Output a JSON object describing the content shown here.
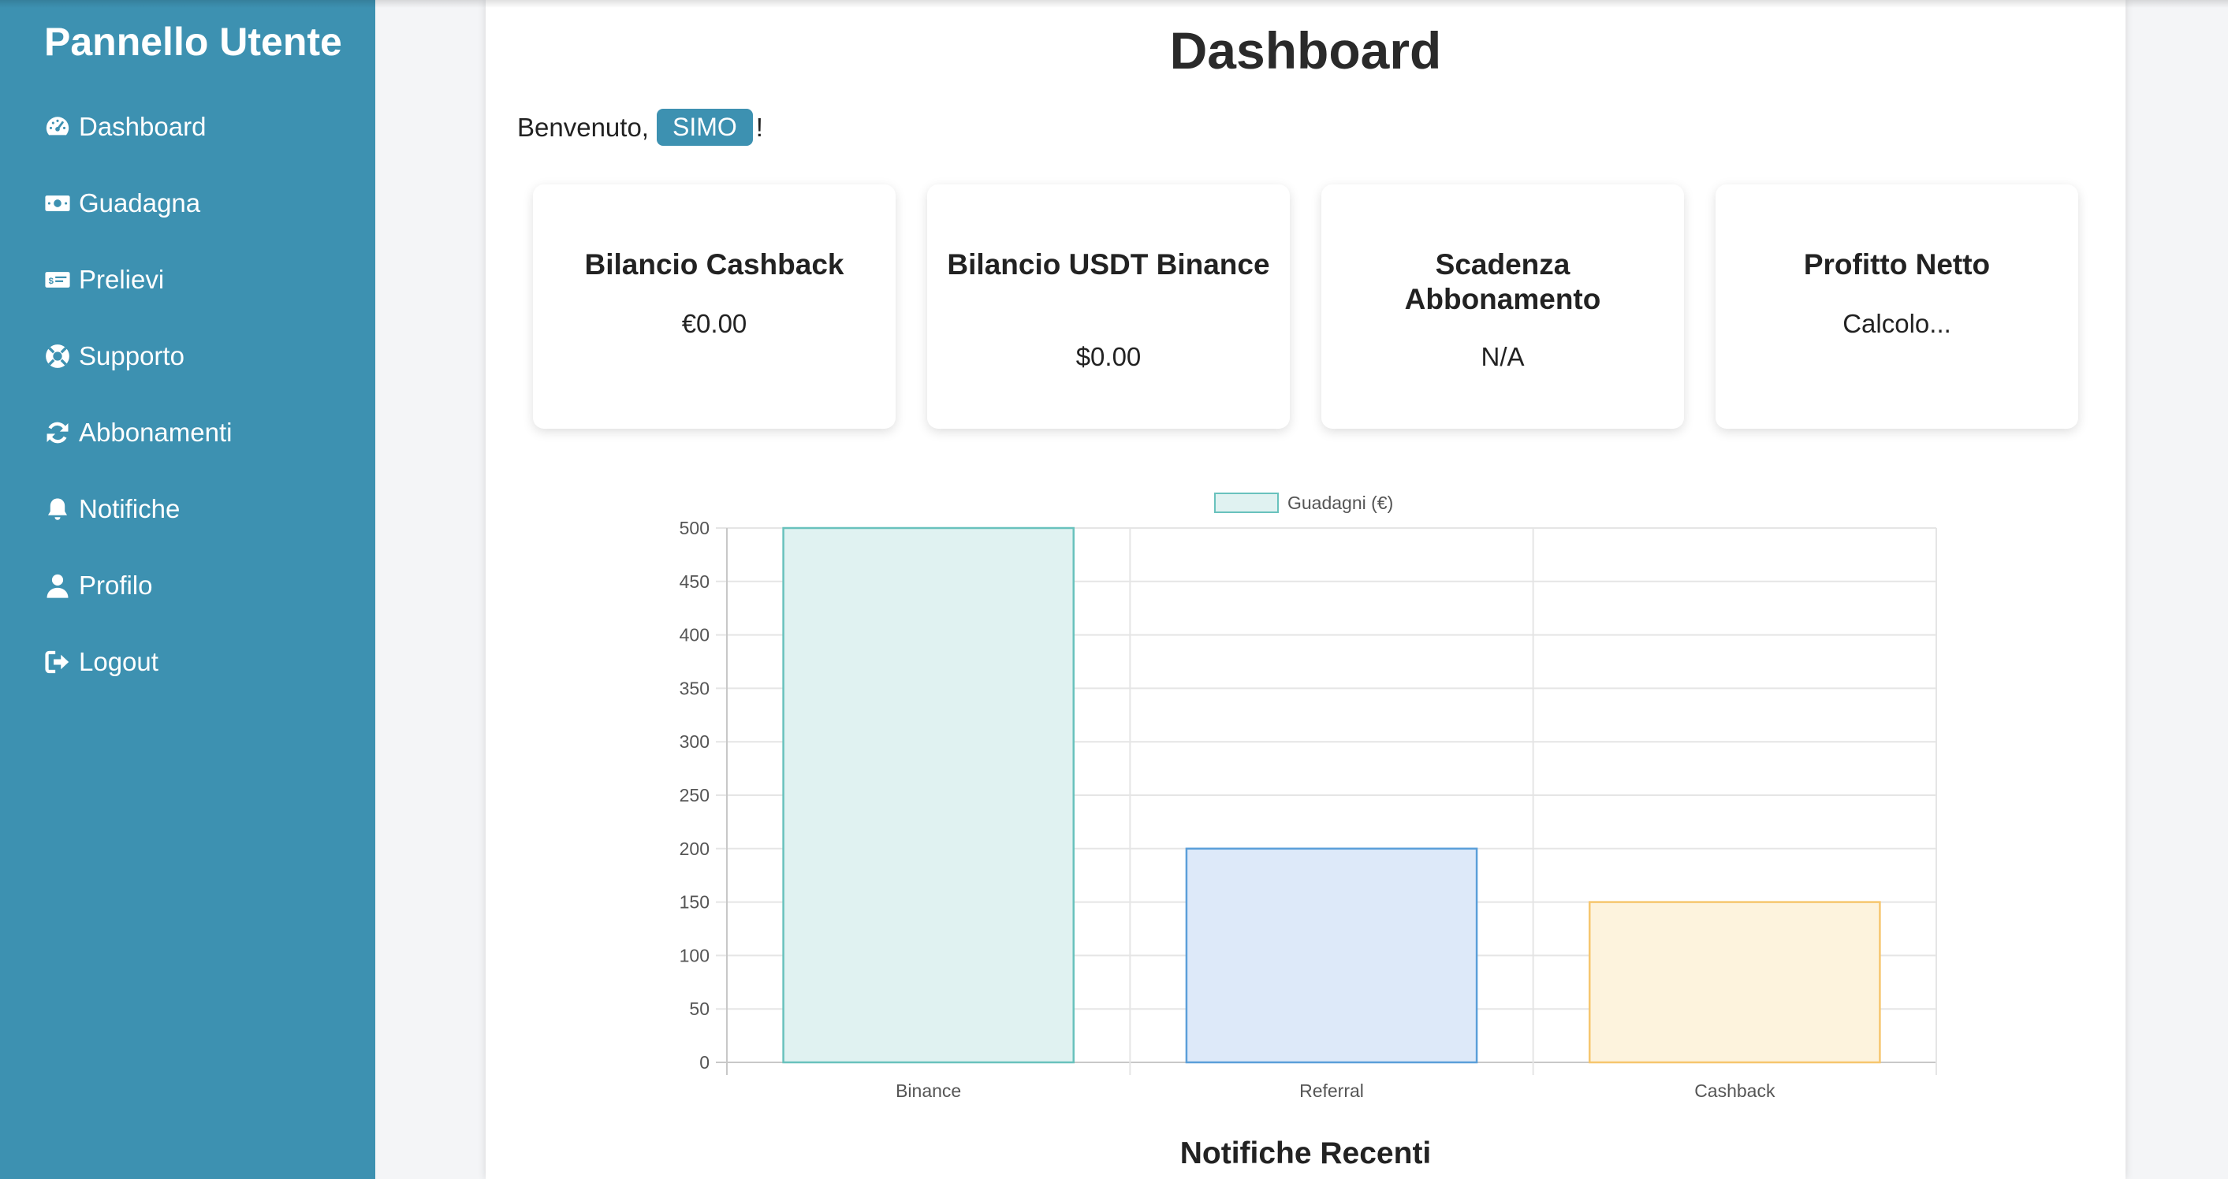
{
  "sidebar": {
    "title": "Pannello Utente",
    "items": [
      {
        "label": "Dashboard",
        "icon": "gauge-icon"
      },
      {
        "label": "Guadagna",
        "icon": "money-bill-icon"
      },
      {
        "label": "Prelievi",
        "icon": "money-check-icon"
      },
      {
        "label": "Supporto",
        "icon": "life-ring-icon"
      },
      {
        "label": "Abbonamenti",
        "icon": "sync-icon"
      },
      {
        "label": "Notifiche",
        "icon": "bell-icon"
      },
      {
        "label": "Profilo",
        "icon": "user-icon"
      },
      {
        "label": "Logout",
        "icon": "sign-out-icon"
      }
    ]
  },
  "main": {
    "title": "Dashboard",
    "welcome_prefix": "Benvenuto,",
    "username": "SIMO",
    "welcome_suffix": "!",
    "cards": [
      {
        "title": "Bilancio Cashback",
        "value": "€0.00"
      },
      {
        "title": "Bilancio USDT Binance",
        "value": "$0.00"
      },
      {
        "title": "Scadenza Abbonamento",
        "value": "N/A"
      },
      {
        "title": "Profitto Netto",
        "value": "Calcolo..."
      }
    ],
    "notifications_title": "Notifiche Recenti"
  },
  "colors": {
    "sidebar_bg": "#3d91b1",
    "accent": "#3d91b1"
  },
  "chart_data": {
    "type": "bar",
    "categories": [
      "Binance",
      "Referral",
      "Cashback"
    ],
    "series": [
      {
        "name": "Guadagni (€)",
        "values": [
          500,
          200,
          150
        ]
      }
    ],
    "bar_fill_colors": [
      "#e0f2f1",
      "#dde9f9",
      "#fdf3dd"
    ],
    "bar_border_colors": [
      "#69c2bd",
      "#5b9fd9",
      "#f6c66e"
    ],
    "legend_swatch_color": "#e0f2f1",
    "ylim": [
      0,
      500
    ],
    "yticks": [
      0,
      50,
      100,
      150,
      200,
      250,
      300,
      350,
      400,
      450,
      500
    ],
    "legend_position": "top",
    "grid": true
  }
}
